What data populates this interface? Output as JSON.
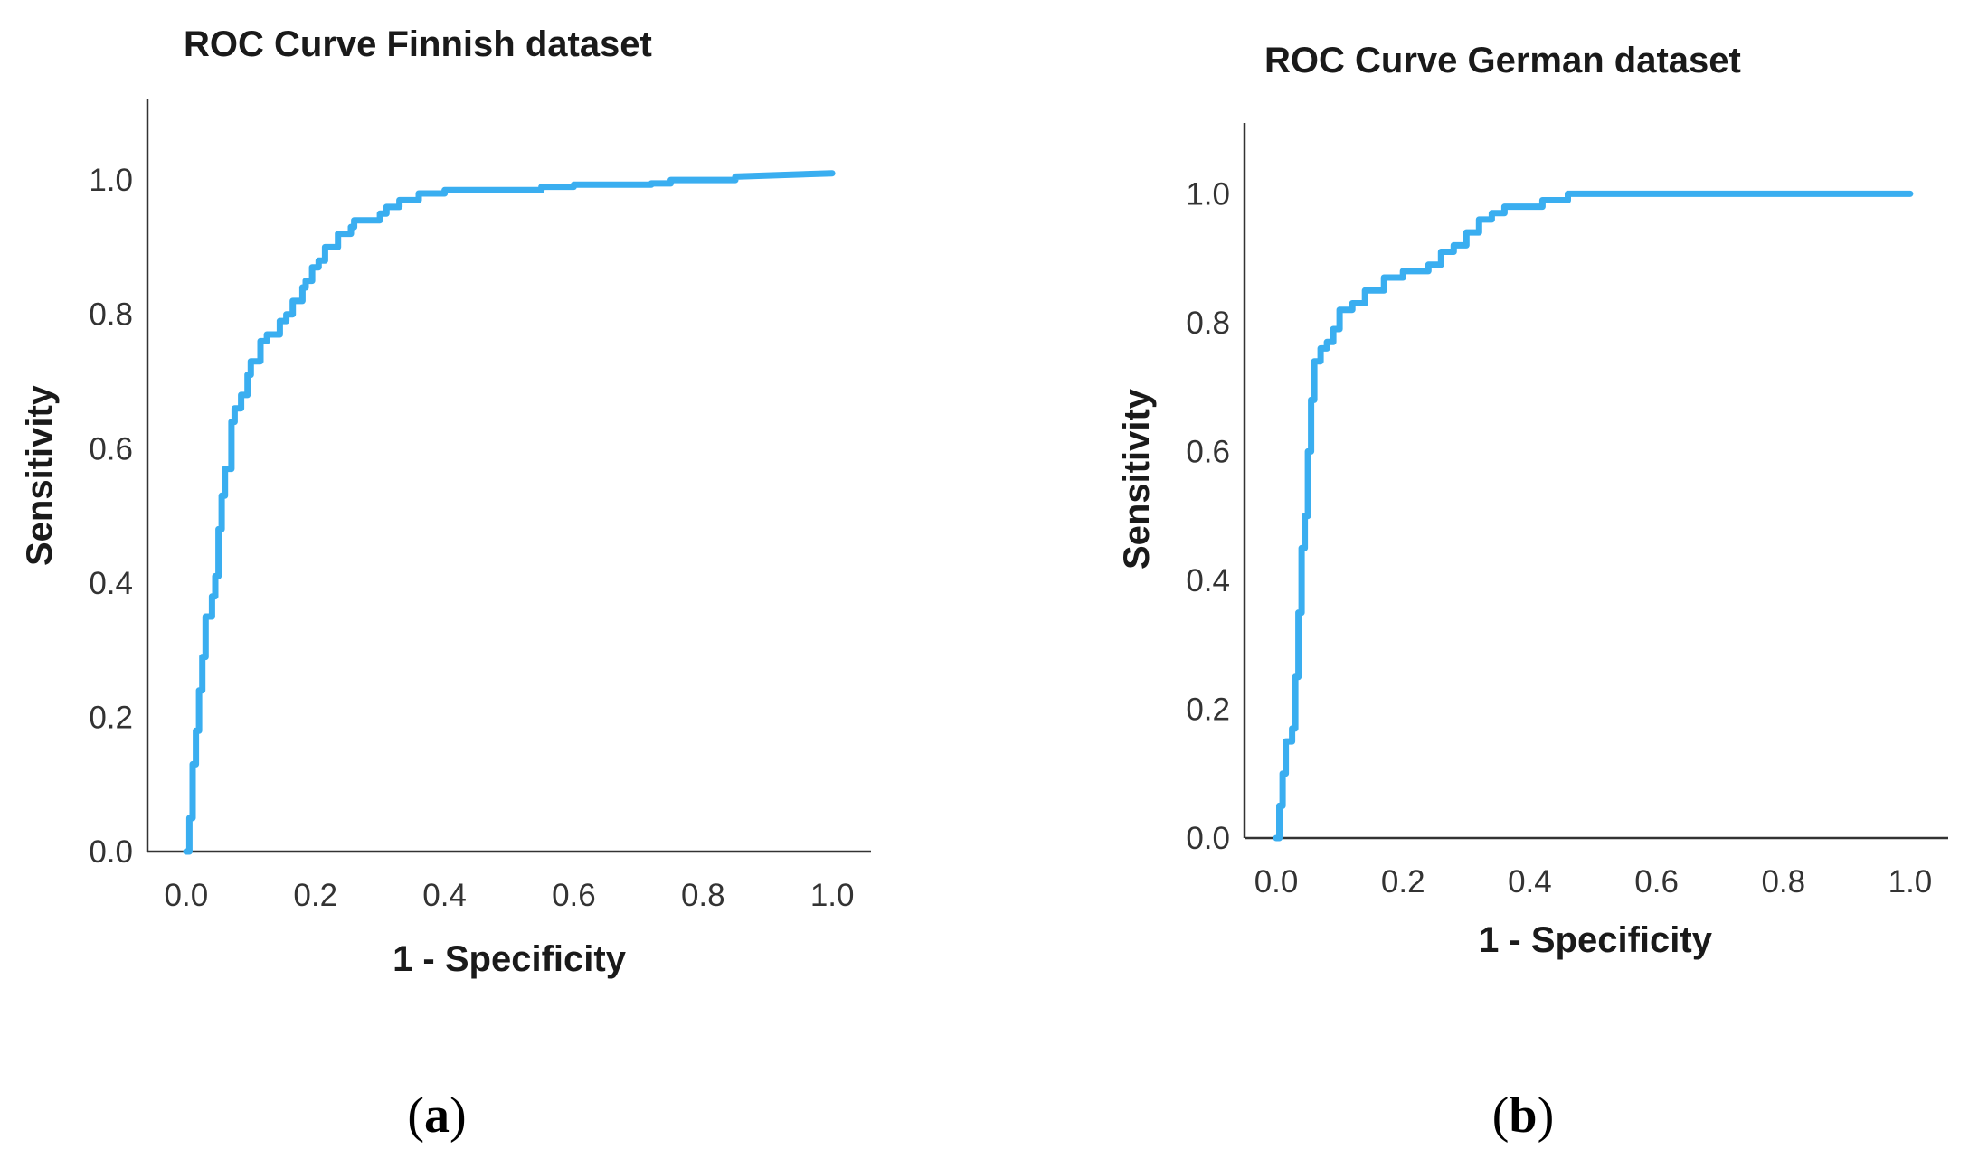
{
  "colors": {
    "curve": "#3aaef0",
    "axis": "#333333",
    "text": "#1a1a1a"
  },
  "chart_data": [
    {
      "type": "line",
      "panel": "(a)",
      "panel_letter": "a",
      "title": "ROC Curve Finnish dataset",
      "xlabel": "1 - Specificity",
      "ylabel": "Sensitivity",
      "xlim": [
        -0.06,
        1.06
      ],
      "ylim": [
        0.0,
        1.12
      ],
      "xticks": [
        0.0,
        0.2,
        0.4,
        0.6,
        0.8,
        1.0
      ],
      "yticks": [
        0.0,
        0.2,
        0.4,
        0.6,
        0.8,
        1.0
      ],
      "xtick_labels": [
        "0.0",
        "0.2",
        "0.4",
        "0.6",
        "0.8",
        "1.0"
      ],
      "ytick_labels": [
        "0.0",
        "0.2",
        "0.4",
        "0.6",
        "0.8",
        "1.0"
      ],
      "grid": false,
      "series": [
        {
          "x": [
            0.0,
            0.005,
            0.005,
            0.01,
            0.01,
            0.015,
            0.015,
            0.02,
            0.02,
            0.025,
            0.025,
            0.03,
            0.03,
            0.04,
            0.04,
            0.045,
            0.045,
            0.05,
            0.05,
            0.055,
            0.055,
            0.06,
            0.06,
            0.07,
            0.07,
            0.075,
            0.075,
            0.085,
            0.085,
            0.095,
            0.095,
            0.1,
            0.1,
            0.115,
            0.115,
            0.125,
            0.125,
            0.145,
            0.145,
            0.155,
            0.155,
            0.165,
            0.165,
            0.18,
            0.18,
            0.185,
            0.185,
            0.195,
            0.195,
            0.205,
            0.205,
            0.215,
            0.215,
            0.235,
            0.235,
            0.255,
            0.255,
            0.26,
            0.26,
            0.3,
            0.3,
            0.31,
            0.31,
            0.33,
            0.33,
            0.36,
            0.36,
            0.4,
            0.4,
            0.55,
            0.55,
            0.6,
            0.6,
            0.72,
            0.72,
            0.75,
            0.75,
            0.85,
            0.85,
            1.0
          ],
          "y": [
            0.0,
            0.0,
            0.05,
            0.05,
            0.13,
            0.13,
            0.18,
            0.18,
            0.24,
            0.24,
            0.29,
            0.29,
            0.35,
            0.35,
            0.38,
            0.38,
            0.41,
            0.41,
            0.48,
            0.48,
            0.53,
            0.53,
            0.57,
            0.57,
            0.64,
            0.64,
            0.66,
            0.66,
            0.68,
            0.68,
            0.71,
            0.71,
            0.73,
            0.73,
            0.76,
            0.76,
            0.77,
            0.77,
            0.79,
            0.79,
            0.8,
            0.8,
            0.82,
            0.82,
            0.84,
            0.84,
            0.85,
            0.85,
            0.87,
            0.87,
            0.88,
            0.88,
            0.9,
            0.9,
            0.92,
            0.92,
            0.93,
            0.93,
            0.94,
            0.94,
            0.95,
            0.95,
            0.96,
            0.96,
            0.97,
            0.97,
            0.98,
            0.98,
            0.985,
            0.985,
            0.99,
            0.99,
            0.993,
            0.993,
            0.995,
            0.995,
            1.0,
            1.0,
            1.005,
            1.01
          ]
        }
      ]
    },
    {
      "type": "line",
      "panel": "(b)",
      "panel_letter": "b",
      "title": "ROC Curve German dataset",
      "xlabel": "1 - Specificity",
      "ylabel": "Sensitivity",
      "xlim": [
        -0.05,
        1.06
      ],
      "ylim": [
        0.0,
        1.11
      ],
      "xticks": [
        0.0,
        0.2,
        0.4,
        0.6,
        0.8,
        1.0
      ],
      "yticks": [
        0.0,
        0.2,
        0.4,
        0.6,
        0.8,
        1.0
      ],
      "xtick_labels": [
        "0.0",
        "0.2",
        "0.4",
        "0.6",
        "0.8",
        "1.0"
      ],
      "ytick_labels": [
        "0.0",
        "0.2",
        "0.4",
        "0.6",
        "0.8",
        "1.0"
      ],
      "grid": false,
      "series": [
        {
          "x": [
            0.0,
            0.005,
            0.005,
            0.01,
            0.01,
            0.015,
            0.015,
            0.025,
            0.025,
            0.03,
            0.03,
            0.035,
            0.035,
            0.04,
            0.04,
            0.045,
            0.045,
            0.05,
            0.05,
            0.055,
            0.055,
            0.06,
            0.06,
            0.07,
            0.07,
            0.08,
            0.08,
            0.09,
            0.09,
            0.1,
            0.1,
            0.12,
            0.12,
            0.14,
            0.14,
            0.17,
            0.17,
            0.2,
            0.2,
            0.24,
            0.24,
            0.26,
            0.26,
            0.28,
            0.28,
            0.3,
            0.3,
            0.32,
            0.32,
            0.34,
            0.34,
            0.36,
            0.36,
            0.42,
            0.42,
            0.46,
            0.46,
            1.0
          ],
          "y": [
            0.0,
            0.0,
            0.05,
            0.05,
            0.1,
            0.1,
            0.15,
            0.15,
            0.17,
            0.17,
            0.25,
            0.25,
            0.35,
            0.35,
            0.45,
            0.45,
            0.5,
            0.5,
            0.6,
            0.6,
            0.68,
            0.68,
            0.74,
            0.74,
            0.76,
            0.76,
            0.77,
            0.77,
            0.79,
            0.79,
            0.82,
            0.82,
            0.83,
            0.83,
            0.85,
            0.85,
            0.87,
            0.87,
            0.88,
            0.88,
            0.89,
            0.89,
            0.91,
            0.91,
            0.92,
            0.92,
            0.94,
            0.94,
            0.96,
            0.96,
            0.97,
            0.97,
            0.98,
            0.98,
            0.99,
            0.99,
            1.0,
            1.0
          ]
        }
      ]
    }
  ]
}
